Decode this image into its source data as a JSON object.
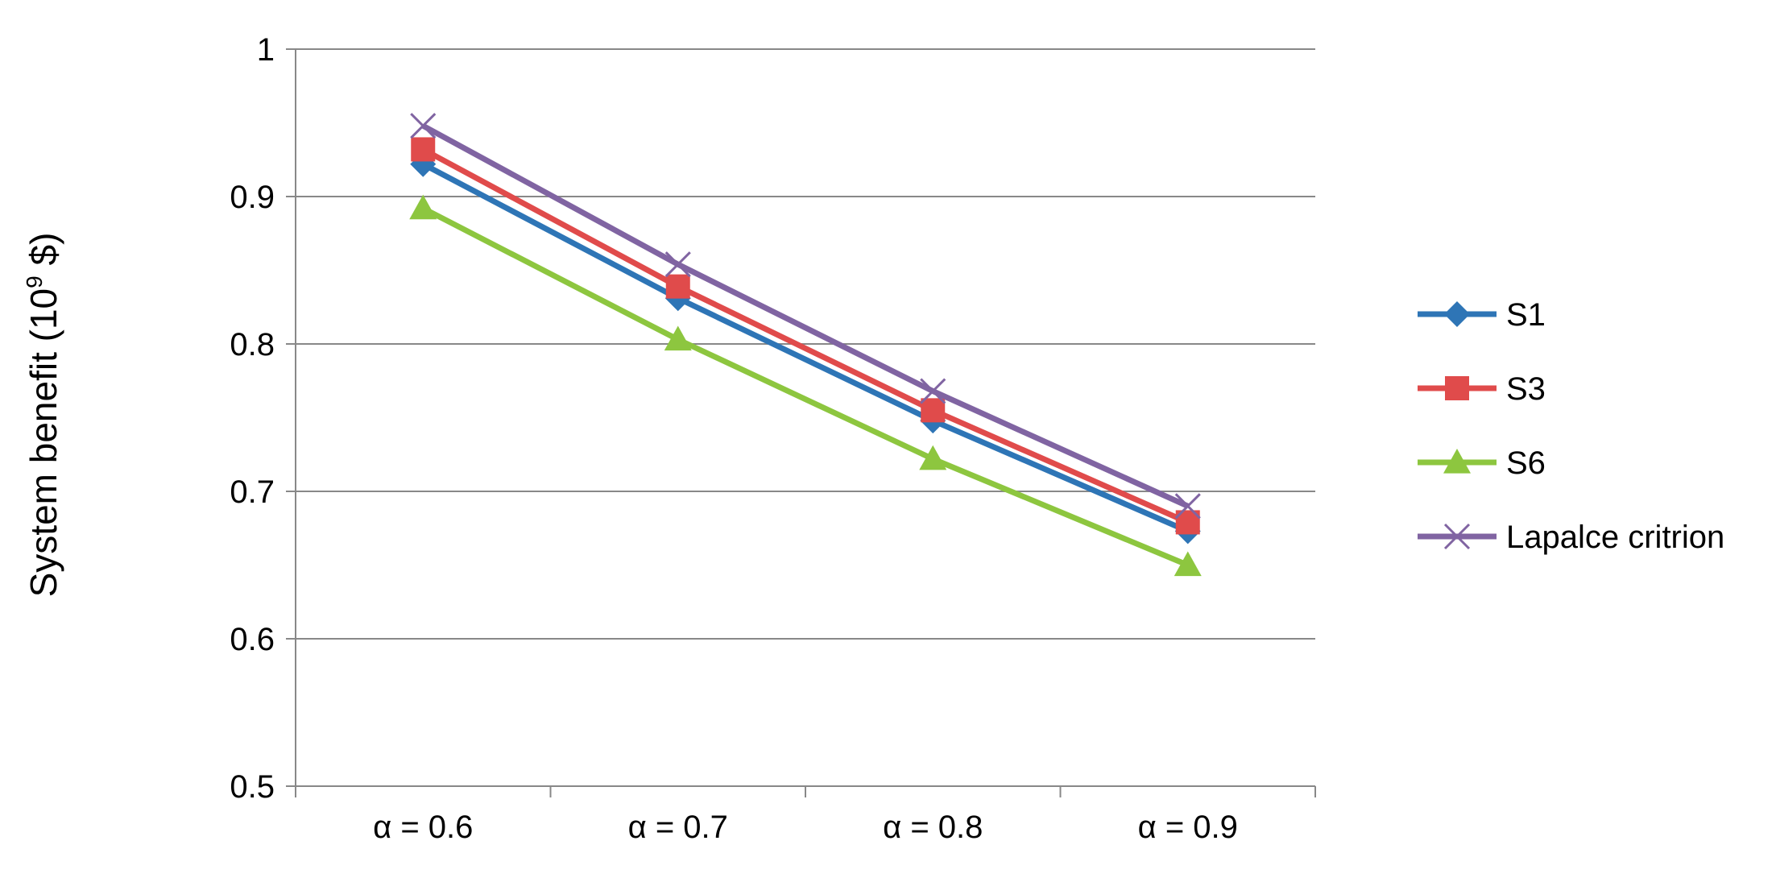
{
  "chart_data": {
    "type": "line",
    "title": "",
    "xlabel": "",
    "ylabel": "System benefit (10",
    "ylabel_sup": "9",
    "ylabel_unit": " $)",
    "categories": [
      "α = 0.6",
      "α = 0.7",
      "α = 0.8",
      "α = 0.9"
    ],
    "ylim": [
      0.5,
      1
    ],
    "yticks": [
      0.5,
      0.6,
      0.7,
      0.8,
      0.9,
      1
    ],
    "ytick_labels": [
      "0.5",
      "0.6",
      "0.7",
      "0.8",
      "0.9",
      "1"
    ],
    "grid": "horizontal",
    "legend_position": "right",
    "series": [
      {
        "name": "S1",
        "marker": "diamond",
        "color": "#2e75b6",
        "values": [
          0.922,
          0.831,
          0.748,
          0.673
        ]
      },
      {
        "name": "S3",
        "marker": "square",
        "color": "#e04b4b",
        "values": [
          0.932,
          0.839,
          0.755,
          0.679
        ]
      },
      {
        "name": "S6",
        "marker": "triangle",
        "color": "#8dc63f",
        "values": [
          0.892,
          0.803,
          0.722,
          0.65
        ]
      },
      {
        "name": "Lapalce critrion",
        "marker": "x",
        "color": "#8064a2",
        "values": [
          0.948,
          0.854,
          0.768,
          0.69
        ]
      }
    ]
  }
}
